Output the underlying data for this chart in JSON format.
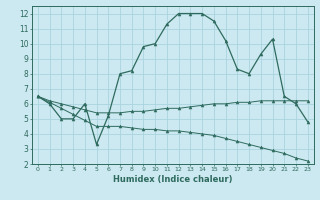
{
  "title": "",
  "xlabel": "Humidex (Indice chaleur)",
  "ylabel": "",
  "bg_color": "#cce8f0",
  "grid_color": "#aad4e0",
  "line_color": "#2e6b5e",
  "xlim": [
    -0.5,
    23.5
  ],
  "ylim": [
    2,
    12.5
  ],
  "xticks": [
    0,
    1,
    2,
    3,
    4,
    5,
    6,
    7,
    8,
    9,
    10,
    11,
    12,
    13,
    14,
    15,
    16,
    17,
    18,
    19,
    20,
    21,
    22,
    23
  ],
  "yticks": [
    2,
    3,
    4,
    5,
    6,
    7,
    8,
    9,
    10,
    11,
    12
  ],
  "series0_x": [
    0,
    1,
    2,
    3,
    4,
    5,
    6,
    7,
    8,
    9,
    10,
    11,
    12,
    13,
    14,
    15,
    16,
    17,
    18,
    19,
    20,
    21,
    22,
    23
  ],
  "series0_y": [
    6.5,
    6.0,
    5.0,
    5.0,
    6.0,
    3.3,
    5.2,
    8.0,
    8.2,
    9.8,
    10.0,
    11.3,
    12.0,
    12.0,
    12.0,
    11.5,
    10.2,
    8.3,
    8.0,
    9.3,
    10.3,
    6.5,
    6.0,
    4.8
  ],
  "series1_x": [
    0,
    1,
    2,
    3,
    4,
    5,
    6,
    7,
    8,
    9,
    10,
    11,
    12,
    13,
    14,
    15,
    16,
    17,
    18,
    19,
    20,
    21,
    22,
    23
  ],
  "series1_y": [
    6.5,
    6.2,
    6.0,
    5.8,
    5.6,
    5.4,
    5.4,
    5.4,
    5.5,
    5.5,
    5.6,
    5.7,
    5.7,
    5.8,
    5.9,
    6.0,
    6.0,
    6.1,
    6.1,
    6.2,
    6.2,
    6.2,
    6.2,
    6.2
  ],
  "series2_x": [
    0,
    1,
    2,
    3,
    4,
    5,
    6,
    7,
    8,
    9,
    10,
    11,
    12,
    13,
    14,
    15,
    16,
    17,
    18,
    19,
    20,
    21,
    22,
    23
  ],
  "series2_y": [
    6.5,
    6.1,
    5.7,
    5.3,
    4.9,
    4.5,
    4.5,
    4.5,
    4.4,
    4.3,
    4.3,
    4.2,
    4.2,
    4.1,
    4.0,
    3.9,
    3.7,
    3.5,
    3.3,
    3.1,
    2.9,
    2.7,
    2.4,
    2.2
  ]
}
